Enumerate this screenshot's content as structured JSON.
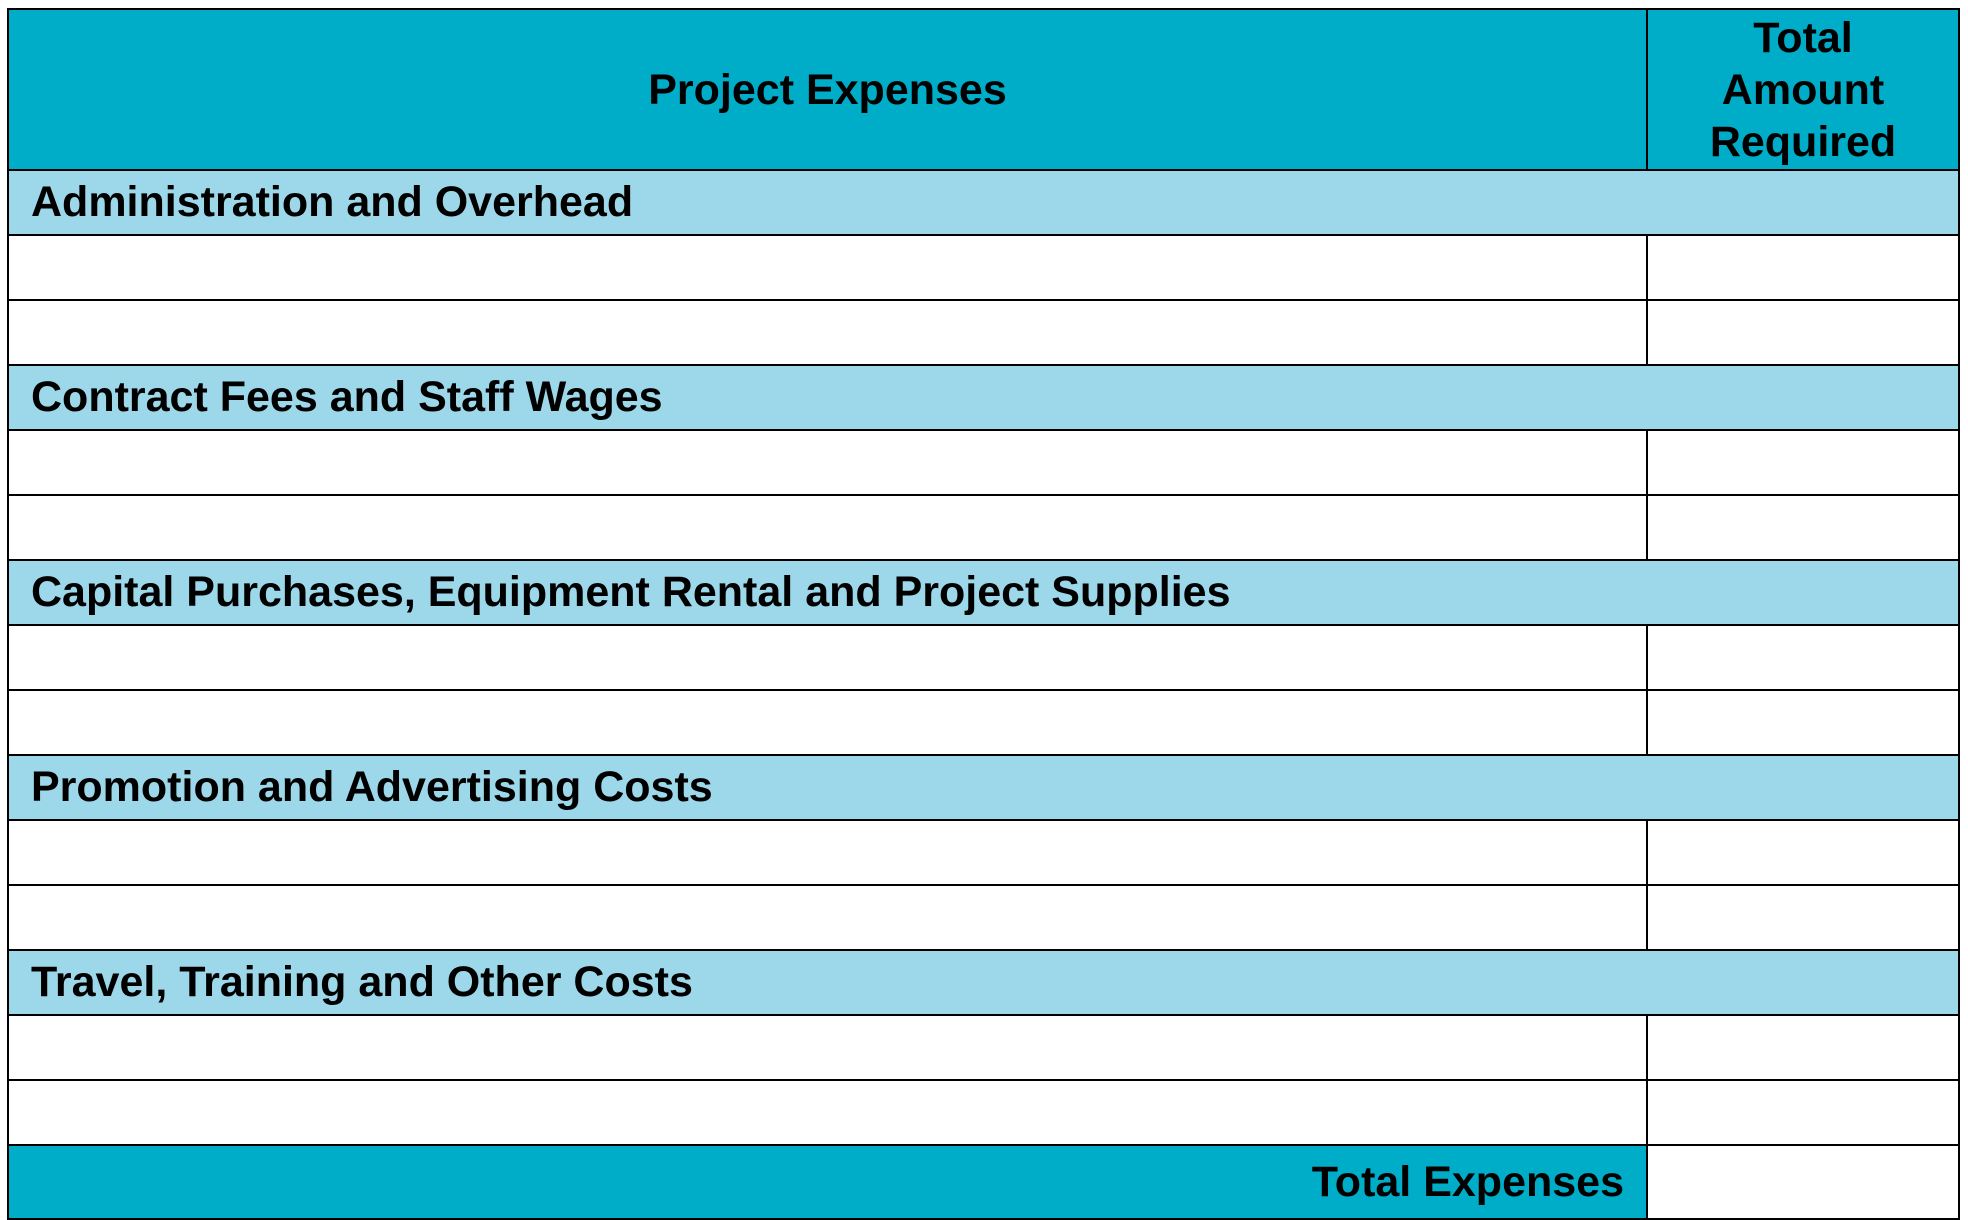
{
  "table": {
    "headers": [
      "Project Expenses",
      "Total Amount Required"
    ],
    "sections": [
      {
        "title": "Administration and Overhead"
      },
      {
        "title": "Contract Fees and Staff Wages"
      },
      {
        "title": "Capital Purchases, Equipment Rental and Project Supplies"
      },
      {
        "title": "Promotion and Advertising Costs"
      },
      {
        "title": "Travel, Training and Other Costs"
      }
    ],
    "footer": "Total Expenses"
  }
}
